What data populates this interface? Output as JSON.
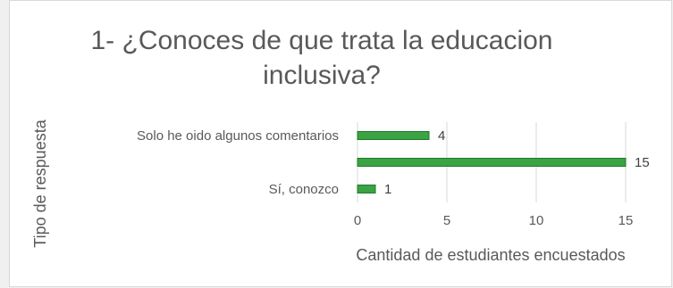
{
  "chart_data": {
    "type": "bar",
    "orientation": "horizontal",
    "title_lines": [
      "1-  ¿Conoces de que trata la educacion",
      "inclusiva?"
    ],
    "xlabel": "Cantidad de estudiantes encuestados",
    "ylabel": "Tipo de respuesta",
    "categories": [
      "Solo he oido algunos comentarios",
      "",
      "Sí, conozco"
    ],
    "values": [
      4,
      15,
      1
    ],
    "data_labels": [
      "4",
      "15",
      "1"
    ],
    "xlim": [
      0,
      15
    ],
    "x_ticks": [
      "0",
      "5",
      "10",
      "15"
    ],
    "grid": true,
    "legend": "none",
    "bar_color": "#3aa343",
    "bar_edge_color": "#1f7a2a",
    "grid_color": "#d9d9d9"
  }
}
